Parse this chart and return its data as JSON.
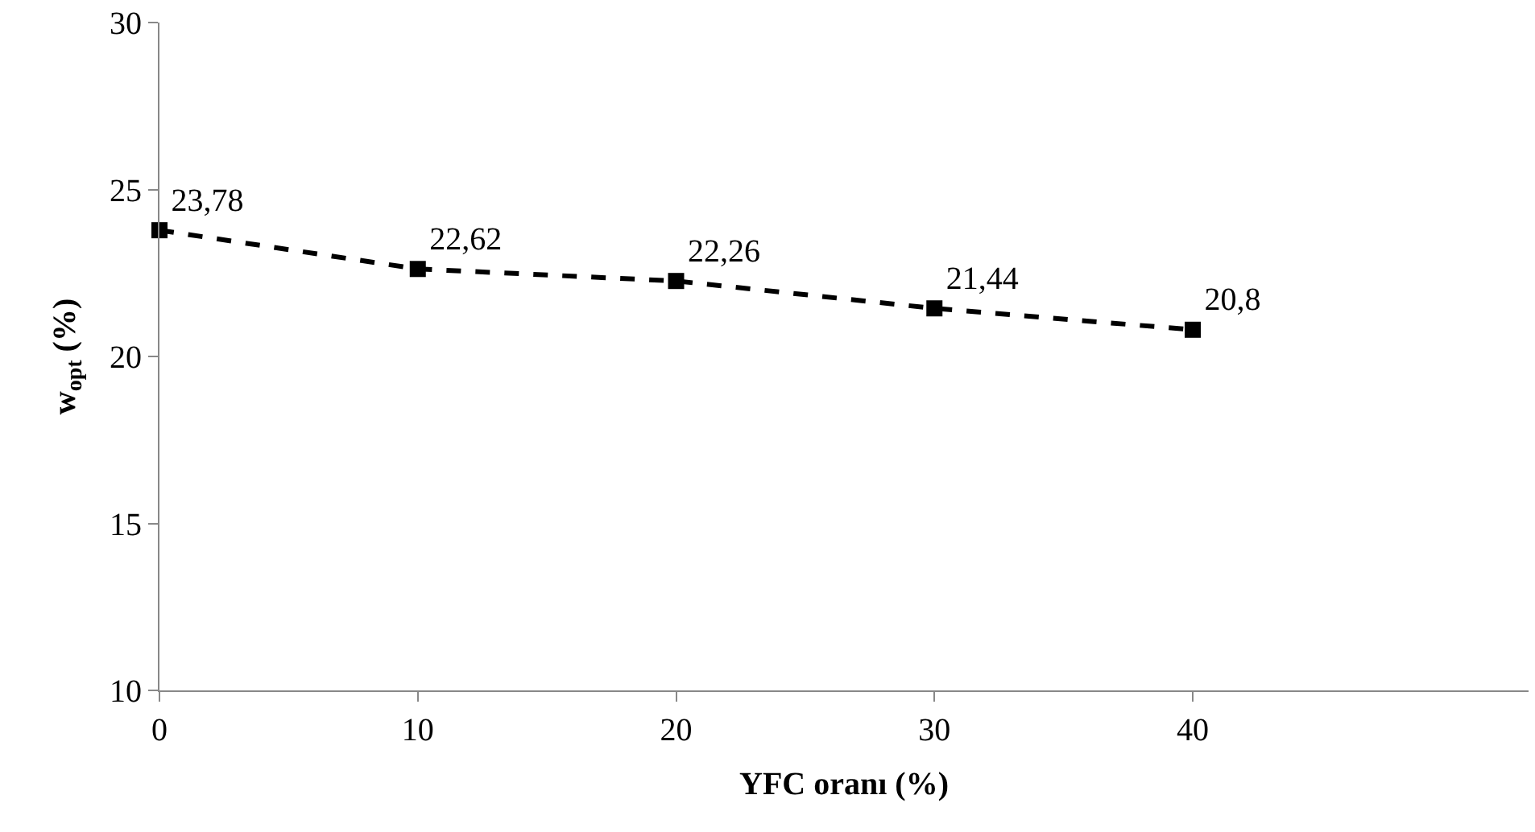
{
  "chart_data": {
    "type": "line",
    "xlabel": "YFC oranı (%)",
    "ylabel": "w$_{opt}$ (%)",
    "x": [
      0,
      10,
      20,
      30,
      40
    ],
    "series": [
      {
        "color": "#000000",
        "values": [
          23.78,
          22.62,
          22.26,
          21.44,
          20.8
        ],
        "value_labels": [
          "23,78",
          "22,62",
          "22,26",
          "21,44",
          "20,8"
        ]
      }
    ],
    "xlim": [
      0,
      53
    ],
    "xticks": [
      0,
      10,
      20,
      30,
      40
    ],
    "ylim": [
      10,
      30
    ],
    "yticks": [
      10,
      15,
      20,
      25,
      30
    ],
    "legend": false,
    "marker": "square",
    "line_style": "dashed"
  }
}
